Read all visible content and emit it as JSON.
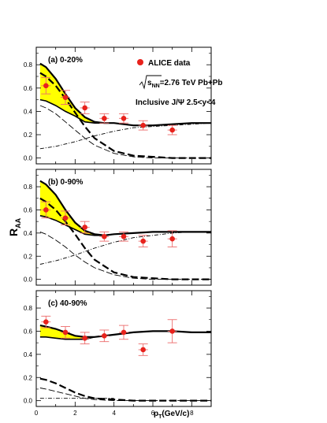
{
  "chart_data": {
    "type": "scatter",
    "shared_axes": {
      "ylabel": "R",
      "ylabel_sub": "AA",
      "xlabel": "p",
      "xlabel_sub": "T",
      "xlabel_units": "(GeV/c)",
      "xlim": [
        0,
        9
      ],
      "ylim": [
        -0.05,
        0.95
      ],
      "x_ticks": [
        "0",
        "2",
        "4",
        "6",
        "8"
      ],
      "y_ticks": [
        "0.0",
        "0.2",
        "0.4",
        "0.6",
        "0.8"
      ]
    },
    "legend": {
      "marker_label": "ALICE data",
      "energy_prefix": "s",
      "energy_sub": "NN",
      "energy_rest": "=2.76 TeV Pb+Pb",
      "rapidity": "Inclusive J/Ψ 2.5<y<4",
      "placement": "top-right of panel (a)"
    },
    "panels": [
      {
        "label": "(a) 0-20%",
        "data": {
          "x": [
            0.5,
            1.5,
            2.5,
            3.5,
            4.5,
            5.5,
            7.0
          ],
          "y": [
            0.62,
            0.52,
            0.43,
            0.34,
            0.34,
            0.28,
            0.24
          ],
          "err": [
            0.07,
            0.06,
            0.05,
            0.04,
            0.04,
            0.04,
            0.04
          ]
        },
        "band": {
          "x": [
            0.2,
            0.5,
            1.0,
            1.5,
            2.0,
            2.5,
            3.0,
            3.5
          ],
          "upper": [
            0.81,
            0.78,
            0.68,
            0.55,
            0.43,
            0.35,
            0.31,
            0.3
          ],
          "lower": [
            0.5,
            0.49,
            0.45,
            0.4,
            0.36,
            0.31,
            0.3,
            0.3
          ]
        },
        "total_upper": {
          "x": [
            0.2,
            0.5,
            1.0,
            1.5,
            2.0,
            2.5,
            3.0,
            3.5,
            4.0,
            5.0,
            6.0,
            7.0,
            8.0,
            9.0
          ],
          "y": [
            0.81,
            0.78,
            0.68,
            0.55,
            0.43,
            0.35,
            0.31,
            0.3,
            0.3,
            0.28,
            0.28,
            0.29,
            0.3,
            0.3
          ]
        },
        "total_lower": {
          "x": [
            0.2,
            0.5,
            1.0,
            1.5,
            2.0,
            2.5,
            3.0,
            3.5
          ],
          "y": [
            0.5,
            0.49,
            0.45,
            0.4,
            0.36,
            0.31,
            0.3,
            0.3
          ]
        },
        "regenerated": {
          "x": [
            0.2,
            0.5,
            1.0,
            1.5,
            2.0,
            2.5,
            3.0,
            4.0,
            5.0,
            6.0,
            7.0,
            8.0,
            9.0
          ],
          "y": [
            0.73,
            0.7,
            0.62,
            0.51,
            0.39,
            0.27,
            0.17,
            0.06,
            0.02,
            0.01,
            0.0,
            0.0,
            0.0
          ]
        },
        "regen_thin": {
          "x": [
            0.2,
            0.5,
            1.0,
            1.5,
            2.0,
            2.5,
            3.0,
            4.0,
            5.0,
            6.0,
            7.0,
            8.0,
            9.0
          ],
          "y": [
            0.45,
            0.43,
            0.38,
            0.31,
            0.24,
            0.17,
            0.11,
            0.04,
            0.01,
            0.0,
            0.0,
            0.0,
            0.0
          ]
        },
        "primordial": {
          "x": [
            0.2,
            1.0,
            2.0,
            3.0,
            4.0,
            5.0,
            6.0,
            7.0,
            8.0,
            9.0
          ],
          "y": [
            0.08,
            0.1,
            0.14,
            0.19,
            0.23,
            0.26,
            0.27,
            0.28,
            0.29,
            0.3
          ]
        }
      },
      {
        "label": "(b) 0-90%",
        "data": {
          "x": [
            0.5,
            1.5,
            2.5,
            3.5,
            4.5,
            5.5,
            7.0
          ],
          "y": [
            0.6,
            0.53,
            0.45,
            0.37,
            0.37,
            0.33,
            0.35
          ],
          "err": [
            0.07,
            0.06,
            0.05,
            0.04,
            0.04,
            0.05,
            0.07
          ]
        },
        "band": {
          "x": [
            0.2,
            0.5,
            1.0,
            1.5,
            2.0,
            2.5,
            3.0,
            3.5,
            4.0
          ],
          "upper": [
            0.85,
            0.82,
            0.73,
            0.6,
            0.49,
            0.42,
            0.39,
            0.38,
            0.39
          ],
          "lower": [
            0.55,
            0.54,
            0.51,
            0.47,
            0.43,
            0.39,
            0.38,
            0.38,
            0.39
          ]
        },
        "total_upper": {
          "x": [
            0.2,
            0.5,
            1.0,
            1.5,
            2.0,
            2.5,
            3.0,
            3.5,
            4.0,
            5.0,
            6.0,
            7.0,
            8.0,
            9.0
          ],
          "y": [
            0.85,
            0.82,
            0.73,
            0.6,
            0.49,
            0.42,
            0.39,
            0.38,
            0.39,
            0.4,
            0.41,
            0.41,
            0.41,
            0.41
          ]
        },
        "total_lower": {
          "x": [
            0.2,
            0.5,
            1.0,
            1.5,
            2.0,
            2.5,
            3.0,
            3.5,
            4.0
          ],
          "y": [
            0.55,
            0.54,
            0.51,
            0.47,
            0.43,
            0.39,
            0.38,
            0.38,
            0.39
          ]
        },
        "regenerated": {
          "x": [
            0.2,
            0.5,
            1.0,
            1.5,
            2.0,
            2.5,
            3.0,
            4.0,
            5.0,
            6.0,
            7.0,
            8.0,
            9.0
          ],
          "y": [
            0.7,
            0.67,
            0.6,
            0.5,
            0.39,
            0.27,
            0.17,
            0.06,
            0.02,
            0.01,
            0.0,
            0.0,
            0.0
          ]
        },
        "regen_thin": {
          "x": [
            0.2,
            0.5,
            1.0,
            1.5,
            2.0,
            2.5,
            3.0,
            4.0,
            5.0,
            6.0,
            7.0,
            8.0,
            9.0
          ],
          "y": [
            0.41,
            0.39,
            0.34,
            0.28,
            0.21,
            0.15,
            0.1,
            0.04,
            0.01,
            0.0,
            0.0,
            0.0,
            0.0
          ]
        },
        "primordial": {
          "x": [
            0.2,
            1.0,
            2.0,
            3.0,
            4.0,
            5.0,
            6.0,
            7.0,
            8.0,
            9.0
          ],
          "y": [
            0.13,
            0.16,
            0.21,
            0.27,
            0.32,
            0.36,
            0.38,
            0.4,
            0.41,
            0.41
          ]
        }
      },
      {
        "label": "(c) 40-90%",
        "data": {
          "x": [
            0.5,
            1.5,
            2.5,
            3.5,
            4.5,
            5.5,
            7.0
          ],
          "y": [
            0.68,
            0.59,
            0.54,
            0.56,
            0.59,
            0.44,
            0.6
          ],
          "err": [
            0.05,
            0.05,
            0.05,
            0.05,
            0.06,
            0.05,
            0.1
          ]
        },
        "band": {
          "x": [
            0.2,
            0.5,
            1.0,
            1.5,
            2.0,
            2.5,
            3.0
          ],
          "upper": [
            0.65,
            0.64,
            0.62,
            0.59,
            0.56,
            0.55,
            0.55
          ],
          "lower": [
            0.55,
            0.55,
            0.54,
            0.53,
            0.53,
            0.53,
            0.55
          ]
        },
        "total_upper": {
          "x": [
            0.2,
            0.5,
            1.0,
            1.5,
            2.0,
            2.5,
            3.0,
            4.0,
            5.0,
            6.0,
            7.0,
            8.0,
            9.0
          ],
          "y": [
            0.65,
            0.64,
            0.62,
            0.59,
            0.56,
            0.55,
            0.55,
            0.57,
            0.59,
            0.6,
            0.6,
            0.59,
            0.59
          ]
        },
        "total_lower": {
          "x": [
            0.2,
            0.5,
            1.0,
            1.5,
            2.0,
            2.5,
            3.0
          ],
          "y": [
            0.55,
            0.55,
            0.54,
            0.53,
            0.53,
            0.53,
            0.55
          ]
        },
        "regenerated": {
          "x": [
            0.2,
            0.5,
            1.0,
            1.5,
            2.0,
            2.5,
            3.0,
            4.0,
            5.0,
            6.0,
            7.0,
            8.0,
            9.0
          ],
          "y": [
            0.19,
            0.18,
            0.15,
            0.11,
            0.07,
            0.04,
            0.02,
            0.01,
            0.0,
            0.0,
            0.0,
            0.0,
            0.0
          ]
        },
        "regen_thin": {
          "x": [
            0.2,
            0.5,
            1.0,
            1.5,
            2.0,
            2.5,
            3.0,
            4.0,
            5.0,
            6.0,
            7.0,
            8.0,
            9.0
          ],
          "y": [
            0.11,
            0.1,
            0.08,
            0.06,
            0.04,
            0.02,
            0.01,
            0.0,
            0.0,
            0.0,
            0.0,
            0.0,
            0.0
          ]
        },
        "primordial": {
          "x": [
            0.2,
            1.0,
            2.0,
            3.0,
            4.0
          ],
          "y": [
            0.02,
            0.02,
            0.02,
            0.02,
            0.02
          ]
        }
      }
    ],
    "colors": {
      "data_point": "#e8221c",
      "error_bar": "#ec6b6b",
      "band_fill": "#ffff00",
      "curve": "#000000"
    }
  }
}
